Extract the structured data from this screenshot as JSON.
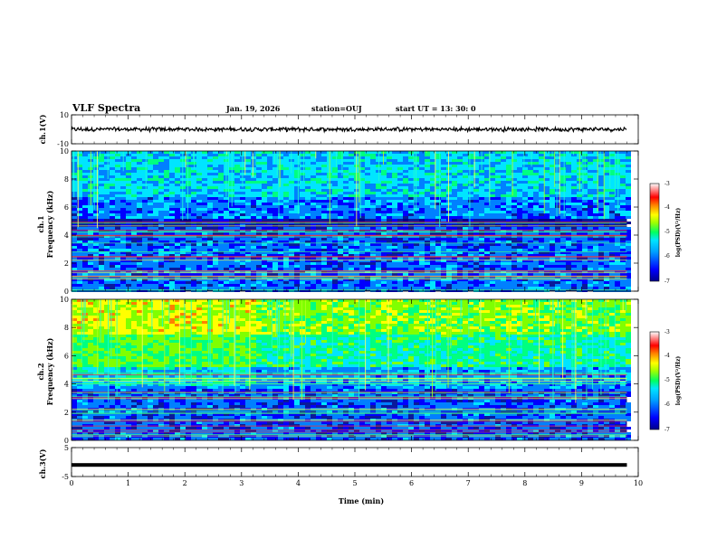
{
  "header": {
    "title": "VLF Spectra",
    "date": "Jan. 19, 2026",
    "station": "station=OUJ",
    "start_ut": "start UT =  13: 30: 0"
  },
  "chart_data": [
    {
      "type": "line",
      "name": "ch1-waveform",
      "ylabel": "ch.1(V)",
      "ylim": [
        -10,
        10
      ],
      "yticks": [
        "10",
        "-10"
      ],
      "x": [
        0,
        1,
        2,
        3,
        4,
        5,
        6,
        7,
        8,
        9,
        9.8
      ],
      "values": [
        0,
        0,
        0,
        0,
        0,
        0,
        0,
        0,
        0,
        0,
        0
      ],
      "amplitude_approx": 1.2
    },
    {
      "type": "heatmap",
      "name": "ch1-spectrogram",
      "ylabel": "ch.1\nFrequency (kHz)",
      "ylabel_line1": "ch.1",
      "ylabel_line2": "Frequency (kHz)",
      "ylim": [
        0,
        10
      ],
      "yticks": [
        "0",
        "2",
        "4",
        "6",
        "8",
        "10"
      ],
      "xlim": [
        0,
        9.8
      ],
      "colorbar": {
        "label": "log(PSD)(V²/Hz)",
        "range": [
          -7,
          -3
        ],
        "ticks": [
          "-3",
          "-4",
          "-5",
          "-6",
          "-7"
        ]
      }
    },
    {
      "type": "heatmap",
      "name": "ch2-spectrogram",
      "ylabel": "ch.2\nFrequency (kHz)",
      "ylabel_line1": "ch.2",
      "ylabel_line2": "Frequency (kHz)",
      "ylim": [
        0,
        10
      ],
      "yticks": [
        "0",
        "2",
        "4",
        "6",
        "8",
        "10"
      ],
      "xlim": [
        0,
        9.8
      ],
      "colorbar": {
        "label": "log(PSD)(V²/Hz)",
        "range": [
          -7,
          -3
        ],
        "ticks": [
          "-3",
          "-4",
          "-5",
          "-6",
          "-7"
        ]
      }
    },
    {
      "type": "line",
      "name": "ch3-waveform",
      "ylabel": "ch.3(V)",
      "ylim": [
        -5,
        5
      ],
      "yticks": [
        "5",
        "-5"
      ],
      "x": [
        0,
        9.8
      ],
      "values": [
        -1,
        -1
      ]
    }
  ],
  "xaxis": {
    "label": "Time (min)",
    "ticks": [
      "0",
      "1",
      "2",
      "3",
      "4",
      "5",
      "6",
      "7",
      "8",
      "9",
      "10"
    ],
    "range": [
      0,
      10
    ]
  },
  "colors": {
    "scale": [
      "#00008b",
      "#0000ff",
      "#0080ff",
      "#00e5ff",
      "#00ff80",
      "#80ff00",
      "#ffff00",
      "#ff8000",
      "#ff0000",
      "#ffffff"
    ]
  }
}
